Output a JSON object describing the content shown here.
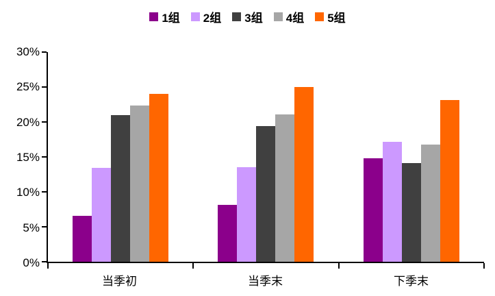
{
  "chart_data": {
    "type": "bar",
    "title": "",
    "categories": [
      "当季初",
      "当季末",
      "下季末"
    ],
    "series": [
      {
        "name": "1组",
        "color": "#8B008B",
        "values": [
          6.6,
          8.1,
          14.8
        ]
      },
      {
        "name": "2组",
        "color": "#CC99FF",
        "values": [
          13.4,
          13.5,
          17.2
        ]
      },
      {
        "name": "3组",
        "color": "#404040",
        "values": [
          21.0,
          19.4,
          14.1
        ]
      },
      {
        "name": "4组",
        "color": "#A6A6A6",
        "values": [
          22.4,
          21.1,
          16.8
        ]
      },
      {
        "name": "5组",
        "color": "#FF6600",
        "values": [
          24.0,
          25.0,
          23.1
        ]
      }
    ],
    "ylim": [
      0,
      30
    ],
    "y_ticks": [
      "0%",
      "5%",
      "10%",
      "15%",
      "20%",
      "25%",
      "30%"
    ],
    "y_tick_values": [
      0,
      5,
      10,
      15,
      20,
      25,
      30
    ],
    "legend_position": "top",
    "grid": false
  }
}
